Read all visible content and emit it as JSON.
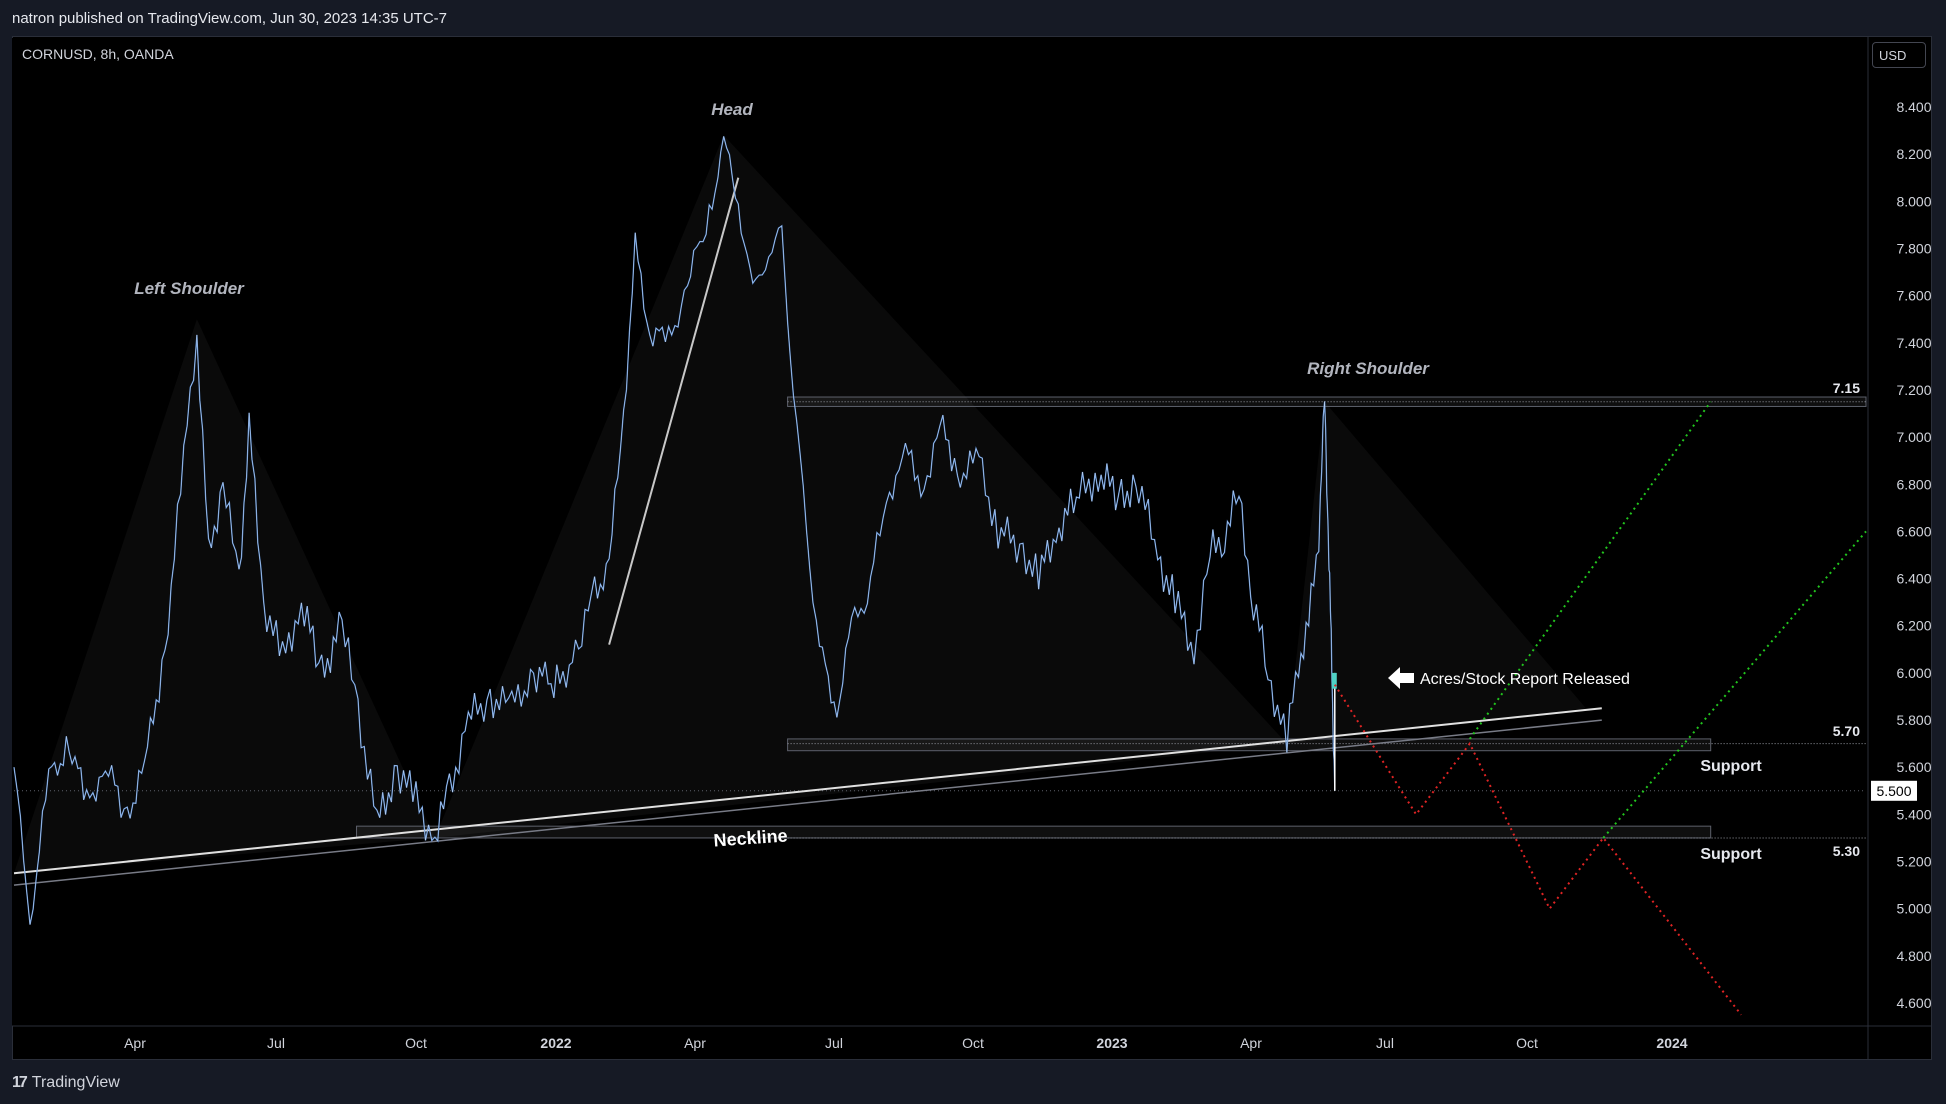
{
  "header": {
    "published_by": "natron published on TradingView.com, Jun 30, 2023 14:35 UTC-7"
  },
  "symbol_label": "CORNUSD, 8h, OANDA",
  "currency_button": "USD",
  "footer": {
    "logo_mark": "17",
    "logo_text": "TradingView"
  },
  "colors": {
    "background": "#000000",
    "frame": "#161a25",
    "candles": "#5b8fd6",
    "target_up": "#22c51e",
    "target_down": "#e02424",
    "level_box": "#2a2e39",
    "last_price_bg": "#ffffff"
  },
  "chart_data": {
    "type": "line",
    "title": "",
    "xlabel": "",
    "ylabel": "",
    "ylim": [
      4.5,
      8.5
    ],
    "y_ticks": [
      "8.400",
      "8.200",
      "8.000",
      "7.800",
      "7.600",
      "7.400",
      "7.200",
      "7.000",
      "6.800",
      "6.600",
      "6.400",
      "6.200",
      "6.000",
      "5.800",
      "5.600",
      "5.400",
      "5.200",
      "5.000",
      "4.800",
      "4.600"
    ],
    "x_ticks": [
      {
        "label": "Apr",
        "bold": false
      },
      {
        "label": "Jul",
        "bold": false
      },
      {
        "label": "Oct",
        "bold": false
      },
      {
        "label": "2022",
        "bold": true
      },
      {
        "label": "Apr",
        "bold": false
      },
      {
        "label": "Jul",
        "bold": false
      },
      {
        "label": "Oct",
        "bold": false
      },
      {
        "label": "2023",
        "bold": true
      },
      {
        "label": "Apr",
        "bold": false
      },
      {
        "label": "Jul",
        "bold": false
      },
      {
        "label": "Oct",
        "bold": false
      },
      {
        "label": "2024",
        "bold": true
      }
    ],
    "x_range": [
      "2021-01-01",
      "2024-06-30"
    ],
    "series": [
      {
        "values": [
          [
            "2021-01-01",
            5.6
          ],
          [
            "2021-01-12",
            4.95
          ],
          [
            "2021-01-25",
            5.55
          ],
          [
            "2021-02-08",
            5.7
          ],
          [
            "2021-02-20",
            5.45
          ],
          [
            "2021-03-05",
            5.6
          ],
          [
            "2021-03-20",
            5.4
          ],
          [
            "2021-04-01",
            5.6
          ],
          [
            "2021-04-15",
            6.1
          ],
          [
            "2021-04-28",
            6.9
          ],
          [
            "2021-05-07",
            7.45
          ],
          [
            "2021-05-15",
            6.5
          ],
          [
            "2021-05-25",
            6.8
          ],
          [
            "2021-06-05",
            6.4
          ],
          [
            "2021-06-12",
            7.05
          ],
          [
            "2021-06-22",
            6.3
          ],
          [
            "2021-07-05",
            6.05
          ],
          [
            "2021-07-18",
            6.3
          ],
          [
            "2021-08-01",
            6.0
          ],
          [
            "2021-08-15",
            6.2
          ],
          [
            "2021-08-26",
            5.85
          ],
          [
            "2021-09-08",
            5.35
          ],
          [
            "2021-09-22",
            5.6
          ],
          [
            "2021-10-05",
            5.45
          ],
          [
            "2021-10-18",
            5.3
          ],
          [
            "2021-10-28",
            5.5
          ],
          [
            "2021-11-10",
            5.8
          ],
          [
            "2021-11-25",
            5.9
          ],
          [
            "2021-12-10",
            5.85
          ],
          [
            "2021-12-25",
            6.0
          ],
          [
            "2022-01-10",
            5.95
          ],
          [
            "2022-01-25",
            6.1
          ],
          [
            "2022-02-05",
            6.35
          ],
          [
            "2022-02-15",
            6.45
          ],
          [
            "2022-02-25",
            7.1
          ],
          [
            "2022-03-05",
            7.8
          ],
          [
            "2022-03-15",
            7.45
          ],
          [
            "2022-03-28",
            7.4
          ],
          [
            "2022-04-10",
            7.65
          ],
          [
            "2022-04-25",
            7.95
          ],
          [
            "2022-05-05",
            8.25
          ],
          [
            "2022-05-15",
            8.0
          ],
          [
            "2022-05-25",
            7.6
          ],
          [
            "2022-06-05",
            7.8
          ],
          [
            "2022-06-14",
            7.85
          ],
          [
            "2022-06-22",
            7.2
          ],
          [
            "2022-07-01",
            6.6
          ],
          [
            "2022-07-10",
            6.1
          ],
          [
            "2022-07-22",
            5.85
          ],
          [
            "2022-08-01",
            6.2
          ],
          [
            "2022-08-12",
            6.35
          ],
          [
            "2022-08-25",
            6.7
          ],
          [
            "2022-09-05",
            6.95
          ],
          [
            "2022-09-20",
            6.8
          ],
          [
            "2022-10-01",
            7.05
          ],
          [
            "2022-10-15",
            6.85
          ],
          [
            "2022-10-28",
            6.9
          ],
          [
            "2022-11-10",
            6.6
          ],
          [
            "2022-11-25",
            6.55
          ],
          [
            "2022-12-08",
            6.4
          ],
          [
            "2022-12-20",
            6.6
          ],
          [
            "2023-01-05",
            6.75
          ],
          [
            "2023-01-18",
            6.85
          ],
          [
            "2023-02-01",
            6.75
          ],
          [
            "2023-02-15",
            6.8
          ],
          [
            "2023-02-28",
            6.5
          ],
          [
            "2023-03-12",
            6.3
          ],
          [
            "2023-03-25",
            6.1
          ],
          [
            "2023-04-05",
            6.5
          ],
          [
            "2023-04-15",
            6.6
          ],
          [
            "2023-04-25",
            6.75
          ],
          [
            "2023-05-05",
            6.3
          ],
          [
            "2023-05-15",
            6.0
          ],
          [
            "2023-05-28",
            5.7
          ],
          [
            "2023-06-05",
            6.05
          ],
          [
            "2023-06-12",
            6.2
          ],
          [
            "2023-06-19",
            6.6
          ],
          [
            "2023-06-23",
            7.15
          ],
          [
            "2023-06-26",
            6.5
          ],
          [
            "2023-06-28",
            6.0
          ],
          [
            "2023-06-30",
            5.5
          ]
        ]
      }
    ],
    "last_price": "5.500",
    "levels": [
      {
        "label": "7.15",
        "value": 7.15
      },
      {
        "label": "5.70",
        "value": 5.7
      },
      {
        "label": "5.30",
        "value": 5.3
      }
    ],
    "annotations": {
      "left_shoulder": "Left Shoulder",
      "head": "Head",
      "right_shoulder": "Right Shoulder",
      "neckline": "Neckline",
      "support_upper": "Support",
      "support_lower": "Support",
      "report_callout": "Acres/Stock Report Released"
    },
    "neckline": [
      [
        "2021-01-01",
        5.15
      ],
      [
        "2023-12-31",
        5.85
      ]
    ],
    "channel_line": [
      [
        "2022-02-15",
        6.12
      ],
      [
        "2022-05-15",
        8.1
      ]
    ],
    "projection_down": [
      [
        "2023-06-30",
        5.95
      ],
      [
        "2023-08-25",
        5.4
      ],
      [
        "2023-10-01",
        5.7
      ],
      [
        "2023-11-25",
        5.0
      ],
      [
        "2024-01-01",
        5.3
      ],
      [
        "2024-04-05",
        4.55
      ]
    ],
    "projection_up_1": [
      [
        "2023-10-01",
        5.72
      ],
      [
        "2024-03-15",
        7.15
      ]
    ],
    "projection_up_2": [
      [
        "2024-01-01",
        5.3
      ],
      [
        "2024-06-30",
        6.6
      ]
    ],
    "grid": false,
    "legend": "none"
  }
}
